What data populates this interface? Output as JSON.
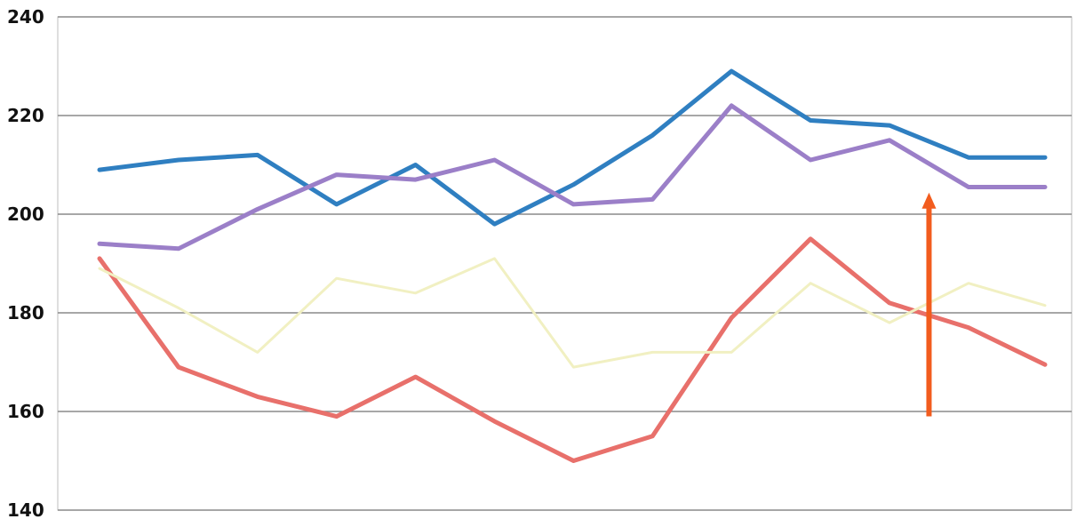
{
  "chart_data": {
    "type": "line",
    "title": "",
    "xlabel": "",
    "ylabel": "",
    "ylim": [
      140,
      240
    ],
    "yticks": [
      140,
      160,
      180,
      200,
      220,
      240
    ],
    "grid": true,
    "x": [
      1,
      2,
      3,
      4,
      5,
      6,
      7,
      8,
      9,
      10,
      11,
      12
    ],
    "series": [
      {
        "color": "#2f7fc1",
        "values": [
          209,
          211,
          212,
          202,
          210,
          198,
          206,
          216,
          229,
          219,
          218,
          211.5
        ]
      },
      {
        "color": "#9b7fc8",
        "values": [
          194,
          193,
          201,
          208,
          207,
          211,
          202,
          203,
          222,
          211,
          215,
          205.5
        ]
      },
      {
        "color": "#e8706b",
        "values": [
          191,
          169,
          163,
          159,
          167,
          158,
          150,
          155,
          179,
          195,
          182,
          177
        ]
      },
      {
        "color": "#f1f0c2",
        "values": [
          189,
          181,
          172,
          187,
          184,
          191,
          169,
          172,
          172,
          186,
          178,
          186
        ]
      }
    ],
    "series_tail": [
      {
        "series": 0,
        "value": 211.5
      },
      {
        "series": 1,
        "value": 205.5
      },
      {
        "series": 2,
        "value": 169.5
      },
      {
        "series": 3,
        "value": 181.5
      }
    ],
    "annotation": {
      "type": "arrow",
      "color": "#f25c1e",
      "x": 11.5,
      "from": 159,
      "to": 204
    }
  }
}
